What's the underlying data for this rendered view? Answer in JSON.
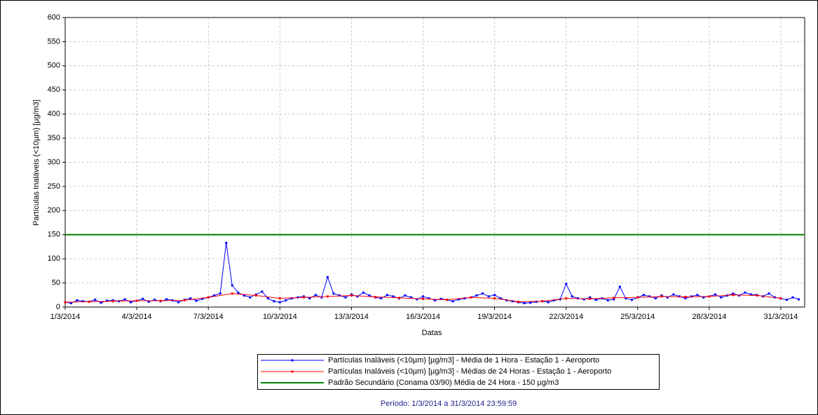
{
  "chart_data": {
    "type": "line",
    "xlabel": "Datas",
    "ylabel": "Partículas Inaláveis (<10µm) [µg/m3]",
    "footer": "Período: 1/3/2014 a 31/3/2014 23:59:59",
    "xlim": [
      1,
      32
    ],
    "ylim": [
      0,
      600
    ],
    "yticks": [
      0,
      50,
      100,
      150,
      200,
      250,
      300,
      350,
      400,
      450,
      500,
      550,
      600
    ],
    "xticks": [
      {
        "value": 1,
        "label": "1/3/2014"
      },
      {
        "value": 4,
        "label": "4/3/2014"
      },
      {
        "value": 7,
        "label": "7/3/2014"
      },
      {
        "value": 10,
        "label": "10/3/2014"
      },
      {
        "value": 13,
        "label": "13/3/2014"
      },
      {
        "value": 16,
        "label": "16/3/2014"
      },
      {
        "value": 19,
        "label": "19/3/2014"
      },
      {
        "value": 22,
        "label": "22/3/2014"
      },
      {
        "value": 25,
        "label": "25/3/2014"
      },
      {
        "value": 28,
        "label": "28/3/2014"
      },
      {
        "value": 31,
        "label": "31/3/2014"
      }
    ],
    "grid": true,
    "series": [
      {
        "name": "Partículas Inaláveis (<10µm) [µg/m3] - Média de 1 Hora - Estação 1 - Aeroporto",
        "color": "#0000ff",
        "markers": true,
        "x": [
          1,
          1.25,
          1.5,
          1.75,
          2,
          2.25,
          2.5,
          2.75,
          3,
          3.25,
          3.5,
          3.75,
          4,
          4.25,
          4.5,
          4.75,
          5,
          5.25,
          5.5,
          5.75,
          6,
          6.25,
          6.5,
          6.75,
          7,
          7.25,
          7.5,
          7.75,
          8,
          8.25,
          8.5,
          8.75,
          9,
          9.25,
          9.5,
          9.75,
          10,
          10.25,
          10.5,
          10.75,
          11,
          11.25,
          11.5,
          11.75,
          12,
          12.25,
          12.5,
          12.75,
          13,
          13.25,
          13.5,
          13.75,
          14,
          14.25,
          14.5,
          14.75,
          15,
          15.25,
          15.5,
          15.75,
          16,
          16.25,
          16.5,
          16.75,
          17,
          17.25,
          17.5,
          17.75,
          18,
          18.25,
          18.5,
          18.75,
          19,
          19.25,
          19.5,
          19.75,
          20,
          20.25,
          20.5,
          20.75,
          21,
          21.25,
          21.5,
          21.75,
          22,
          22.25,
          22.5,
          22.75,
          23,
          23.25,
          23.5,
          23.75,
          24,
          24.25,
          24.5,
          24.75,
          25,
          25.25,
          25.5,
          25.75,
          26,
          26.25,
          26.5,
          26.75,
          27,
          27.25,
          27.5,
          27.75,
          28,
          28.25,
          28.5,
          28.75,
          29,
          29.25,
          29.5,
          29.75,
          30,
          30.25,
          30.5,
          30.75,
          31,
          31.25,
          31.5,
          31.75
        ],
        "values": [
          10,
          8,
          14,
          12,
          11,
          15,
          9,
          13,
          14,
          12,
          16,
          10,
          13,
          17,
          11,
          15,
          12,
          16,
          14,
          10,
          15,
          18,
          13,
          17,
          20,
          24,
          28,
          133,
          45,
          30,
          24,
          20,
          26,
          32,
          18,
          12,
          10,
          14,
          18,
          20,
          22,
          18,
          25,
          20,
          62,
          28,
          24,
          20,
          26,
          22,
          30,
          24,
          20,
          18,
          25,
          22,
          18,
          24,
          20,
          16,
          22,
          18,
          14,
          17,
          15,
          12,
          16,
          18,
          20,
          24,
          28,
          22,
          25,
          18,
          14,
          12,
          10,
          8,
          9,
          11,
          12,
          10,
          14,
          16,
          48,
          22,
          18,
          16,
          20,
          15,
          18,
          14,
          16,
          42,
          18,
          15,
          20,
          25,
          22,
          18,
          24,
          20,
          26,
          22,
          18,
          22,
          25,
          20,
          22,
          26,
          20,
          24,
          28,
          24,
          30,
          26,
          25,
          22,
          28,
          20,
          18,
          15,
          20,
          16
        ]
      },
      {
        "name": "Partículas Inaláveis (<10µm) [µg/m3] - Médias de 24 Horas - Estação 1 - Aeroporto",
        "color": "#ff0000",
        "markers": true,
        "x": [
          1,
          2,
          3,
          4,
          5,
          6,
          7,
          8,
          9,
          10,
          11,
          12,
          13,
          14,
          15,
          16,
          17,
          18,
          19,
          20,
          21,
          22,
          23,
          24,
          25,
          26,
          27,
          28,
          29,
          30,
          31
        ],
        "values": [
          10,
          11,
          12,
          13,
          13,
          14,
          20,
          28,
          24,
          18,
          20,
          22,
          24,
          21,
          19,
          17,
          15,
          20,
          18,
          11,
          12,
          18,
          17,
          19,
          20,
          22,
          21,
          22,
          25,
          24,
          18
        ]
      },
      {
        "name": "Padrão Secundário (Conama 03/90) Média de 24 Hora - 150 µg/m3",
        "color": "#008000",
        "markers": false,
        "x": [
          1,
          32
        ],
        "values": [
          150,
          150
        ]
      }
    ]
  }
}
